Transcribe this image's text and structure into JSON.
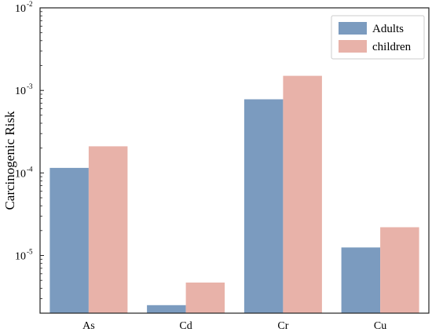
{
  "chart_data": {
    "type": "bar",
    "ylabel": "Carcinogenic Risk",
    "xlabel": "",
    "yscale": "log",
    "ylim": [
      2e-06,
      0.01
    ],
    "y_ticks": [
      {
        "value": 0.01,
        "base": "10",
        "exp": "-2"
      },
      {
        "value": 0.001,
        "base": "10",
        "exp": "-3"
      },
      {
        "value": 0.0001,
        "base": "10",
        "exp": "-4"
      },
      {
        "value": 1e-05,
        "base": "10",
        "exp": "-5"
      }
    ],
    "categories": [
      "As",
      "Cd",
      "Cr",
      "Cu"
    ],
    "series": [
      {
        "name": "Adults",
        "color": "#7b9bbf",
        "values": [
          0.000115,
          2.5e-06,
          0.00078,
          1.25e-05
        ]
      },
      {
        "name": "children",
        "color": "#e8b2a9",
        "values": [
          0.00021,
          4.7e-06,
          0.0015,
          2.2e-05
        ]
      }
    ],
    "legend_position": "top-right",
    "grid": false
  }
}
